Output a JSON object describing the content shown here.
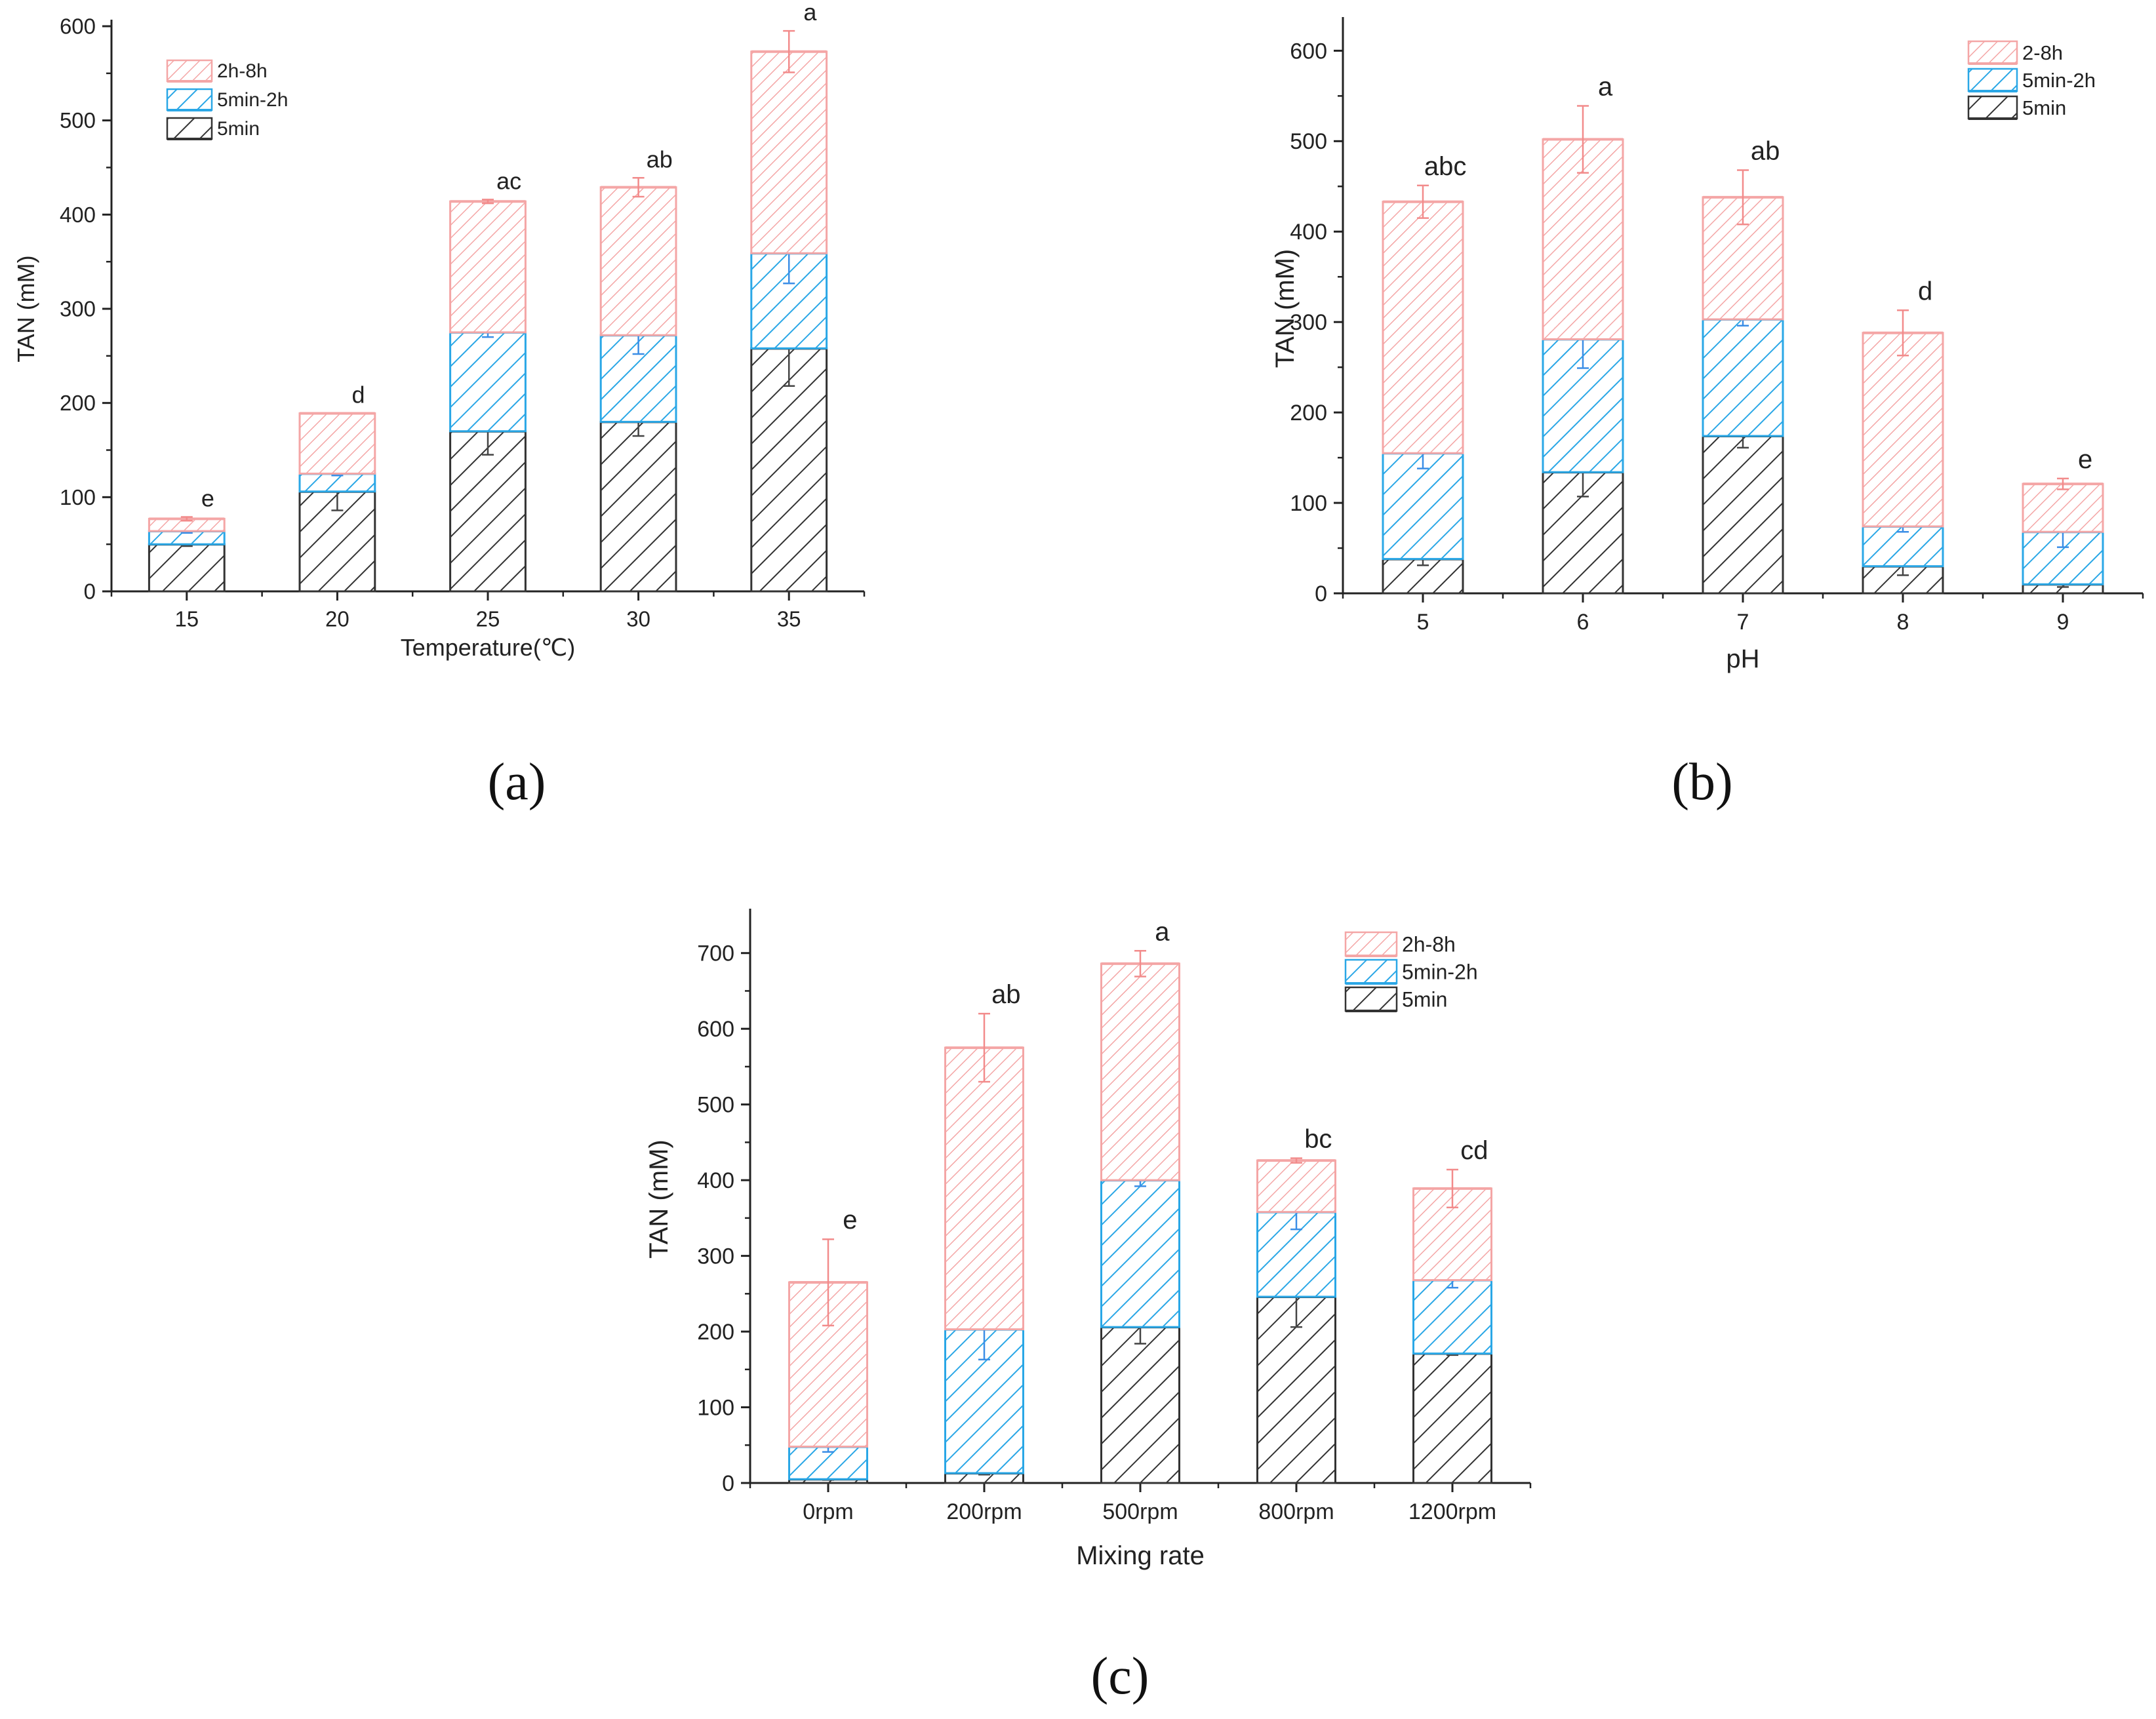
{
  "colors": {
    "stage_5min": "#333333",
    "stage_5min_2h": "#2aa7e6",
    "stage_2h_8h": "#f4a6a6",
    "errbar_5min": "#444444",
    "errbar_5min_2h": "#3b8ee6",
    "errbar_2h_8h": "#f28b8b",
    "axis": "#222222"
  },
  "chart_data": [
    {
      "type": "bar",
      "stacked": true,
      "panel_label": "(a)",
      "xlabel": "Temperature(℃)",
      "ylabel": "TAN (mM)",
      "ylim": [
        0,
        600
      ],
      "yticks": [
        0,
        100,
        200,
        300,
        400,
        500,
        600
      ],
      "categories": [
        "15",
        "20",
        "25",
        "30",
        "35"
      ],
      "significance": [
        "e",
        "d",
        "ac",
        "ab",
        "a"
      ],
      "legend_position": "top-left",
      "series": [
        {
          "name": "5min",
          "color_key": "stage_5min",
          "values": [
            50,
            106,
            170,
            180,
            258
          ],
          "errors": [
            2,
            20,
            25,
            15,
            40
          ]
        },
        {
          "name": "5min-2h",
          "color_key": "stage_5min_2h",
          "values": [
            14,
            19,
            105,
            92,
            101
          ],
          "errors": [
            2,
            2,
            5,
            20,
            32
          ]
        },
        {
          "name": "2h-8h",
          "color_key": "stage_2h_8h",
          "values": [
            13,
            64,
            139,
            157,
            214
          ],
          "errors": [
            2,
            0,
            2,
            10,
            22
          ]
        }
      ]
    },
    {
      "type": "bar",
      "stacked": true,
      "panel_label": "(b)",
      "xlabel": "pH",
      "ylabel": "TAN (mM)",
      "ylim": [
        0,
        630
      ],
      "yticks": [
        0,
        100,
        200,
        300,
        400,
        500,
        600
      ],
      "categories": [
        "5",
        "6",
        "7",
        "8",
        "9"
      ],
      "significance": [
        "abc",
        "a",
        "ab",
        "d",
        "e"
      ],
      "legend_position": "top-right",
      "series": [
        {
          "name": "5min",
          "color_key": "stage_5min",
          "values": [
            38,
            134,
            174,
            30,
            10
          ],
          "errors": [
            7,
            27,
            13,
            10,
            3
          ]
        },
        {
          "name": "5min-2h",
          "color_key": "stage_5min_2h",
          "values": [
            117,
            147,
            129,
            44,
            58
          ],
          "errors": [
            17,
            32,
            7,
            6,
            17
          ]
        },
        {
          "name": "2-8h",
          "color_key": "stage_2h_8h",
          "values": [
            278,
            221,
            135,
            214,
            53
          ],
          "errors": [
            18,
            37,
            30,
            25,
            6
          ]
        }
      ]
    },
    {
      "type": "bar",
      "stacked": true,
      "panel_label": "(c)",
      "xlabel": "Mixing rate",
      "ylabel": "TAN (mM)",
      "ylim": [
        0,
        750
      ],
      "yticks": [
        0,
        100,
        200,
        300,
        400,
        500,
        600,
        700
      ],
      "categories": [
        "0rpm",
        "200rpm",
        "500rpm",
        "800rpm",
        "1200rpm"
      ],
      "significance": [
        "e",
        "ab",
        "a",
        "bc",
        "cd"
      ],
      "legend_position": "top-right",
      "series": [
        {
          "name": "5min",
          "color_key": "stage_5min",
          "values": [
            5,
            13,
            206,
            246,
            171
          ],
          "errors": [
            1,
            2,
            22,
            40,
            2
          ]
        },
        {
          "name": "5min-2h",
          "color_key": "stage_5min_2h",
          "values": [
            43,
            190,
            194,
            112,
            97
          ],
          "errors": [
            7,
            40,
            8,
            23,
            10
          ]
        },
        {
          "name": "2h-8h",
          "color_key": "stage_2h_8h",
          "values": [
            217,
            372,
            286,
            68,
            121
          ],
          "errors": [
            57,
            45,
            17,
            3,
            25
          ]
        }
      ]
    }
  ]
}
